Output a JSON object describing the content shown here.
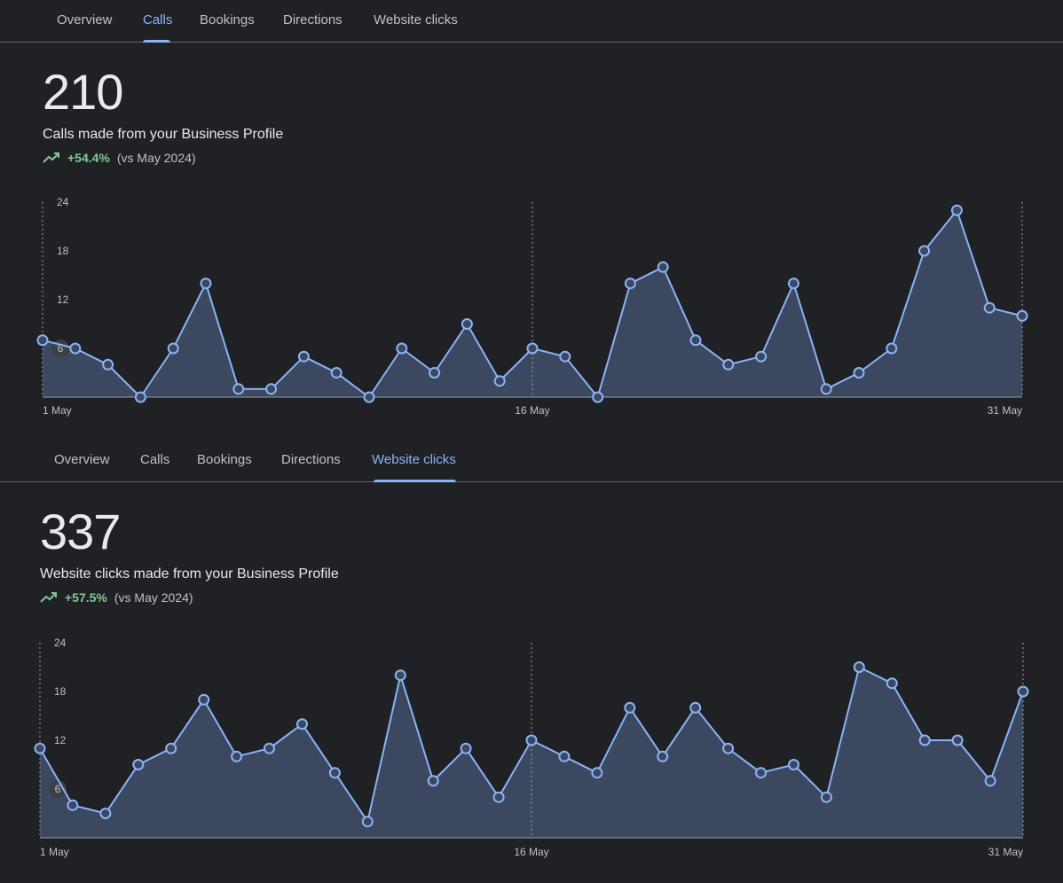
{
  "panels": [
    {
      "tabs": [
        {
          "label": "Overview"
        },
        {
          "label": "Calls"
        },
        {
          "label": "Bookings"
        },
        {
          "label": "Directions"
        },
        {
          "label": "Website clicks"
        }
      ],
      "active_tab": "Calls",
      "total": "210",
      "metric_title": "Calls made from your Business Profile",
      "change": "+54.4%",
      "comparison": "(vs May 2024)",
      "trend_icon": "trending-up-icon",
      "colors": {
        "line": "#8ab4f8",
        "fill": "#3c4760",
        "positive": "#81c995"
      }
    },
    {
      "tabs": [
        {
          "label": "Overview"
        },
        {
          "label": "Calls"
        },
        {
          "label": "Bookings"
        },
        {
          "label": "Directions"
        },
        {
          "label": "Website clicks"
        }
      ],
      "active_tab": "Website clicks",
      "total": "337",
      "metric_title": "Website clicks made from your Business Profile",
      "change": "+57.5%",
      "comparison": "(vs May 2024)",
      "trend_icon": "trending-up-icon",
      "colors": {
        "line": "#8ab4f8",
        "fill": "#3c4760",
        "positive": "#81c995"
      }
    }
  ],
  "chart_data": [
    {
      "type": "area",
      "title": "",
      "x": [
        "1 May",
        "2 May",
        "3 May",
        "4 May",
        "5 May",
        "6 May",
        "7 May",
        "8 May",
        "9 May",
        "10 May",
        "11 May",
        "12 May",
        "13 May",
        "14 May",
        "15 May",
        "16 May",
        "17 May",
        "18 May",
        "19 May",
        "20 May",
        "21 May",
        "22 May",
        "23 May",
        "24 May",
        "25 May",
        "26 May",
        "27 May",
        "28 May",
        "29 May",
        "30 May",
        "31 May"
      ],
      "series": [
        {
          "values": [
            7,
            6,
            4,
            0,
            6,
            14,
            1,
            1,
            5,
            3,
            0,
            6,
            3,
            9,
            2,
            6,
            5,
            0,
            14,
            16,
            7,
            4,
            5,
            14,
            1,
            3,
            6,
            18,
            23,
            11,
            10
          ]
        }
      ],
      "x_tick_labels": [
        "1 May",
        "16 May",
        "31 May"
      ],
      "y_ticks": [
        6,
        12,
        18,
        24
      ],
      "ylim": [
        0,
        24
      ],
      "vertical_reference_lines": [
        "1 May",
        "16 May",
        "31 May"
      ]
    },
    {
      "type": "area",
      "title": "",
      "x": [
        "1 May",
        "2 May",
        "3 May",
        "4 May",
        "5 May",
        "6 May",
        "7 May",
        "8 May",
        "9 May",
        "10 May",
        "11 May",
        "12 May",
        "13 May",
        "14 May",
        "15 May",
        "16 May",
        "17 May",
        "18 May",
        "19 May",
        "20 May",
        "21 May",
        "22 May",
        "23 May",
        "24 May",
        "25 May",
        "26 May",
        "27 May",
        "28 May",
        "29 May",
        "30 May",
        "31 May"
      ],
      "series": [
        {
          "values": [
            11,
            4,
            3,
            9,
            11,
            17,
            10,
            11,
            14,
            8,
            2,
            20,
            7,
            11,
            5,
            12,
            10,
            8,
            16,
            10,
            16,
            11,
            8,
            9,
            5,
            21,
            19,
            12,
            12,
            7,
            18
          ]
        }
      ],
      "x_tick_labels": [
        "1 May",
        "16 May",
        "31 May"
      ],
      "y_ticks": [
        6,
        12,
        18,
        24
      ],
      "ylim": [
        0,
        24
      ],
      "vertical_reference_lines": [
        "1 May",
        "16 May",
        "31 May"
      ]
    }
  ]
}
